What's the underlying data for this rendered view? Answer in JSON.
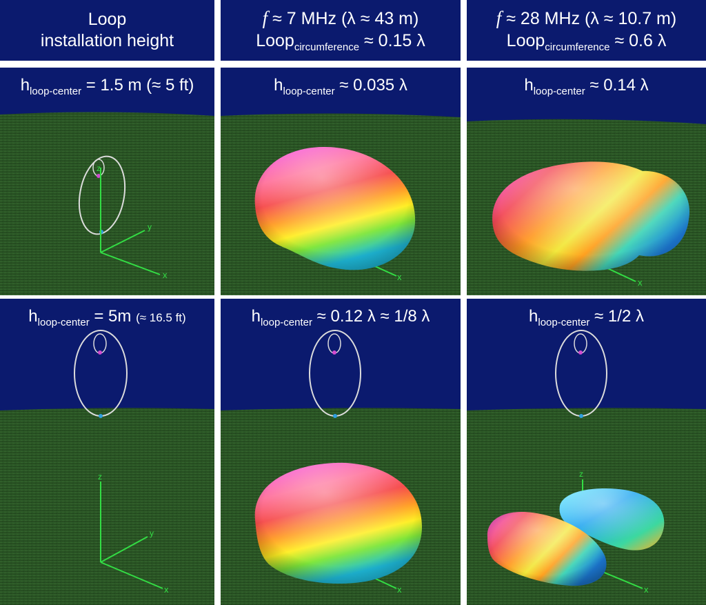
{
  "headers": {
    "col1": {
      "line1": "Loop",
      "line2": "installation height"
    },
    "col2": {
      "freq_symbol": "f",
      "freq_text": "≈ 7 MHz  (λ ≈ 43 m)",
      "loop_main": "Loop",
      "loop_sub": "circumference",
      "loop_value": "≈ 0.15 λ"
    },
    "col3": {
      "freq_symbol": "f",
      "freq_text": "≈ 28 MHz  (λ ≈ 10.7 m)",
      "loop_main": "Loop",
      "loop_sub": "circumference",
      "loop_value": "≈ 0.6 λ"
    }
  },
  "cells": {
    "r1c1": {
      "h": "h",
      "sub": "loop-center",
      "value": " =  1.5 m (≈ 5 ft)",
      "extra": ""
    },
    "r1c2": {
      "h": "h",
      "sub": "loop-center",
      "value": " ≈ 0.035 λ",
      "extra": ""
    },
    "r1c3": {
      "h": "h",
      "sub": "loop-center",
      "value": " ≈ 0.14 λ",
      "extra": ""
    },
    "r2c1": {
      "h": "h",
      "sub": "loop-center",
      "value": " =  5m ",
      "extra": "(≈ 16.5 ft)"
    },
    "r2c2": {
      "h": "h",
      "sub": "loop-center",
      "value": " ≈ 0.12 λ ≈ 1/8 λ",
      "extra": ""
    },
    "r2c3": {
      "h": "h",
      "sub": "loop-center",
      "value": " ≈ 1/2 λ",
      "extra": ""
    }
  },
  "axis_labels": {
    "x": "x",
    "y": "y",
    "z": "z"
  },
  "colors": {
    "sky": "#0b1a6e",
    "ground": "#2d5a26",
    "axis": "#33dd44",
    "loop": "#d8d8d8",
    "separator": "#ffffff"
  }
}
